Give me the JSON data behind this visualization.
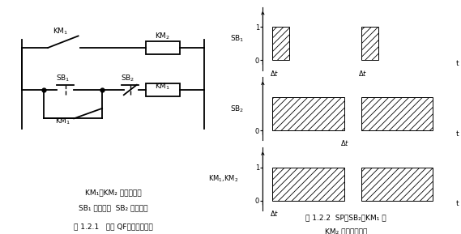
{
  "caption_left_line1": "KM₁、KM₂ 交流接触器",
  "caption_left_line2": "SB₁ 启动按鈕  SB₂ 停止按鈕",
  "caption_left_line3": "图 1.2.1   开关 QF跳闸控制电路",
  "caption_right_line1": "图 1.2.2  SP、SB₂、KM₁ 和",
  "caption_right_line2": "KM₂ 的工作状态图",
  "hatch_pattern": "////",
  "lw": 1.0,
  "col": "black"
}
